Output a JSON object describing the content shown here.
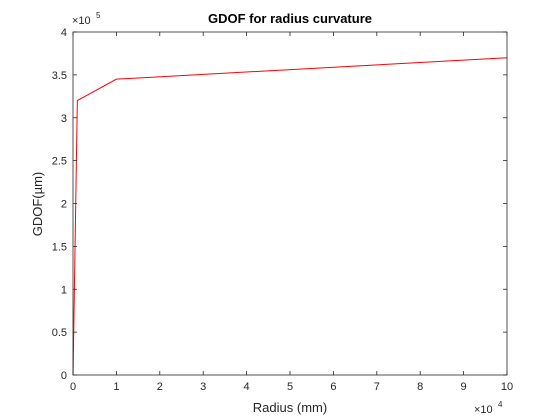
{
  "chart_data": {
    "type": "line",
    "title": "GDOF for radius curvature",
    "xlabel": "Radius (mm)",
    "ylabel": "GDOF(µm)",
    "x_multiplier": {
      "base": "×10",
      "power": "4"
    },
    "y_multiplier": {
      "base": "×10",
      "power": "5"
    },
    "xlim": [
      0,
      100000
    ],
    "ylim": [
      0,
      400000
    ],
    "x_ticks": [
      0,
      10000,
      20000,
      30000,
      40000,
      50000,
      60000,
      70000,
      80000,
      90000,
      100000
    ],
    "x_tick_labels": [
      "0",
      "1",
      "2",
      "3",
      "4",
      "5",
      "6",
      "7",
      "8",
      "9",
      "10"
    ],
    "y_ticks": [
      0,
      50000,
      100000,
      150000,
      200000,
      250000,
      300000,
      350000,
      400000
    ],
    "y_tick_labels": [
      "0",
      "0.5",
      "1",
      "1.5",
      "2",
      "2.5",
      "3",
      "3.5",
      "4"
    ],
    "grid": false,
    "box": true,
    "series": [
      {
        "color": "#ff0000",
        "x": [
          10,
          1000,
          10000,
          100000
        ],
        "y": [
          0,
          320000,
          345000,
          370000
        ]
      }
    ]
  }
}
